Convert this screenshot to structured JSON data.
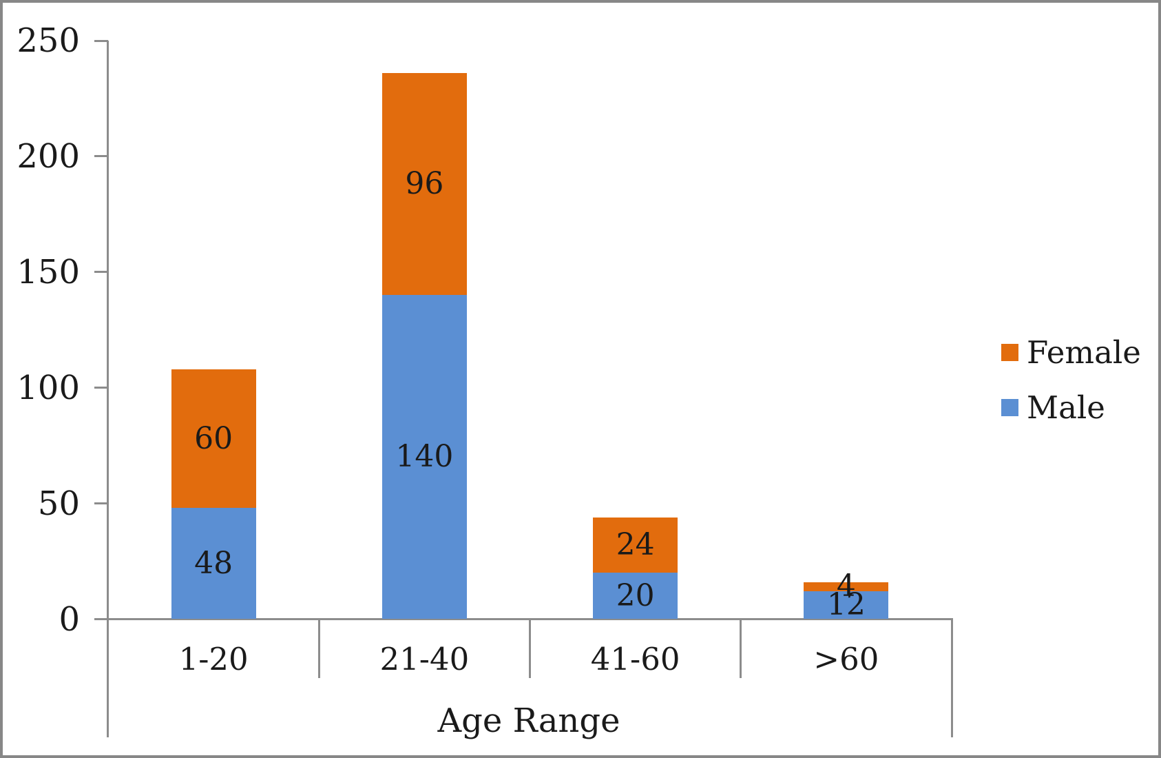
{
  "chart_data": {
    "type": "bar",
    "stacked": true,
    "title": "",
    "xlabel": "Age Range",
    "ylabel": "",
    "categories": [
      "1-20",
      "21-40",
      "41-60",
      ">60"
    ],
    "series": [
      {
        "name": "Male",
        "color": "#5B8FD3",
        "values": [
          48,
          140,
          20,
          12
        ]
      },
      {
        "name": "Female",
        "color": "#E26C0D",
        "values": [
          60,
          96,
          24,
          4
        ]
      }
    ],
    "totals": [
      108,
      236,
      44,
      16
    ],
    "ylim": [
      0,
      250
    ],
    "yticks": [
      0,
      50,
      100,
      150,
      200,
      250
    ],
    "grid": false,
    "legend_position": "right",
    "data_labels": true
  },
  "legend": {
    "items": [
      {
        "label": "Female",
        "color": "#E26C0D"
      },
      {
        "label": "Male",
        "color": "#5B8FD3"
      }
    ]
  },
  "colors": {
    "male": "#5B8FD3",
    "female": "#E26C0D",
    "axis": "#8C8C8C",
    "border": "#878787",
    "text": "#1A1A1A"
  }
}
